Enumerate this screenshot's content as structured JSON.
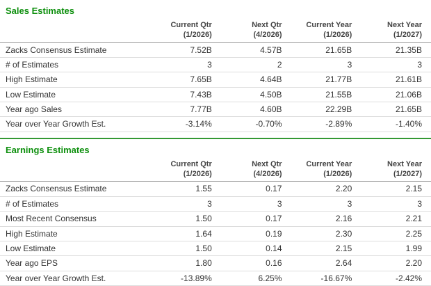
{
  "colors": {
    "heading_green": "#0d8f0d",
    "divider_green": "#339933",
    "body_text": "#333333",
    "header_text": "#444444",
    "row_border": "#dddddd",
    "header_border": "#999999"
  },
  "columns": [
    {
      "line1": "Current Qtr",
      "line2": "(1/2026)"
    },
    {
      "line1": "Next Qtr",
      "line2": "(4/2026)"
    },
    {
      "line1": "Current Year",
      "line2": "(1/2026)"
    },
    {
      "line1": "Next Year",
      "line2": "(1/2027)"
    }
  ],
  "sections": [
    {
      "title": "Sales Estimates",
      "rows": [
        {
          "label": "Zacks Consensus Estimate",
          "values": [
            "7.52B",
            "4.57B",
            "21.65B",
            "21.35B"
          ]
        },
        {
          "label": "# of Estimates",
          "values": [
            "3",
            "2",
            "3",
            "3"
          ]
        },
        {
          "label": "High Estimate",
          "values": [
            "7.65B",
            "4.64B",
            "21.77B",
            "21.61B"
          ]
        },
        {
          "label": "Low Estimate",
          "values": [
            "7.43B",
            "4.50B",
            "21.55B",
            "21.06B"
          ]
        },
        {
          "label": "Year ago Sales",
          "values": [
            "7.77B",
            "4.60B",
            "22.29B",
            "21.65B"
          ]
        },
        {
          "label": "Year over Year Growth Est.",
          "values": [
            "-3.14%",
            "-0.70%",
            "-2.89%",
            "-1.40%"
          ]
        }
      ]
    },
    {
      "title": "Earnings Estimates",
      "rows": [
        {
          "label": "Zacks Consensus Estimate",
          "values": [
            "1.55",
            "0.17",
            "2.20",
            "2.15"
          ]
        },
        {
          "label": "# of Estimates",
          "values": [
            "3",
            "3",
            "3",
            "3"
          ]
        },
        {
          "label": "Most Recent Consensus",
          "values": [
            "1.50",
            "0.17",
            "2.16",
            "2.21"
          ]
        },
        {
          "label": "High Estimate",
          "values": [
            "1.64",
            "0.19",
            "2.30",
            "2.25"
          ]
        },
        {
          "label": "Low Estimate",
          "values": [
            "1.50",
            "0.14",
            "2.15",
            "1.99"
          ]
        },
        {
          "label": "Year ago EPS",
          "values": [
            "1.80",
            "0.16",
            "2.64",
            "2.20"
          ]
        },
        {
          "label": "Year over Year Growth Est.",
          "values": [
            "-13.89%",
            "6.25%",
            "-16.67%",
            "-2.42%"
          ]
        }
      ]
    }
  ]
}
